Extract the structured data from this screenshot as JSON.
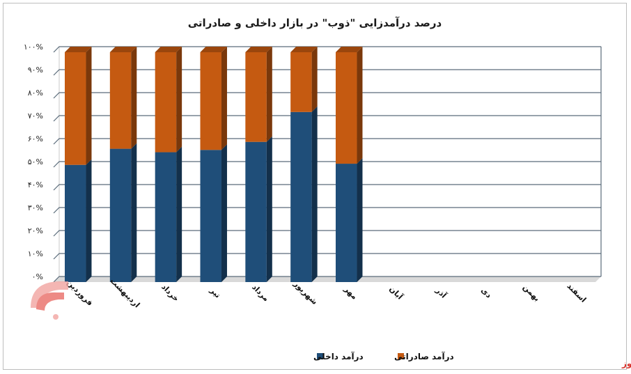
{
  "chart_data": {
    "type": "bar",
    "stacked": true,
    "title": "درصد درآمدزایی \"ذوب\" در بازار داخلی و صادراتی",
    "categories": [
      "فروردین",
      "اردیبهشت",
      "خرداد",
      "تیر",
      "مرداد",
      "شهریور",
      "مهر",
      "آبان",
      "آذر",
      "دی",
      "بهمن",
      "اسفند"
    ],
    "series": [
      {
        "name": "درآمد داخلی",
        "color": "#1f4e79",
        "values": [
          51,
          58,
          56.5,
          57.5,
          61,
          74,
          51.5,
          null,
          null,
          null,
          null,
          null
        ]
      },
      {
        "name": "درآمد صادراتی",
        "color": "#c55a11",
        "values": [
          49,
          42,
          43.5,
          42.5,
          39,
          26,
          48.5,
          null,
          null,
          null,
          null,
          null
        ]
      }
    ],
    "ylim": [
      0,
      100
    ],
    "yticks": [
      "۰%",
      "۱۰%",
      "۲۰%",
      "۳۰%",
      "۴۰%",
      "۵۰%",
      "۶۰%",
      "۷۰%",
      "۸۰%",
      "۹۰%",
      "۱۰۰%"
    ],
    "grid": true,
    "legend_position": "bottom"
  },
  "watermark": {
    "text": "بورس نیوز",
    "color": "#d8322b"
  }
}
